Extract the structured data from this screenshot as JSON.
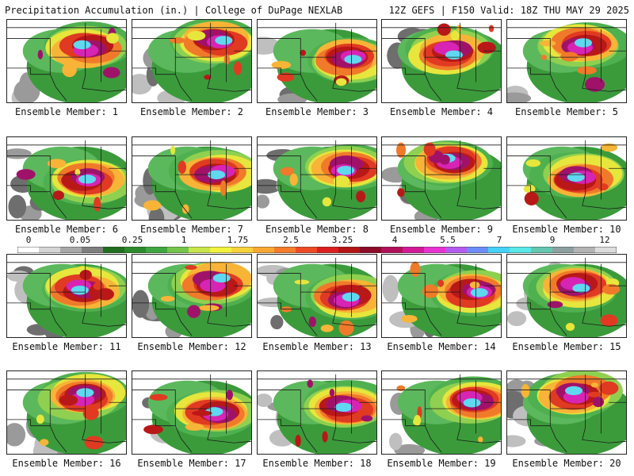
{
  "header": {
    "title": "Precipitation Accumulation (in.) | College of DuPage NEXLAB",
    "run_info": "12Z GEFS | F150 Valid: 18Z THU MAY 29 2025"
  },
  "panels": [
    {
      "label": "Ensemble Member: 1"
    },
    {
      "label": "Ensemble Member: 2"
    },
    {
      "label": "Ensemble Member: 3"
    },
    {
      "label": "Ensemble Member: 4"
    },
    {
      "label": "Ensemble Member: 5"
    },
    {
      "label": "Ensemble Member: 6"
    },
    {
      "label": "Ensemble Member: 7"
    },
    {
      "label": "Ensemble Member: 8"
    },
    {
      "label": "Ensemble Member: 9"
    },
    {
      "label": "Ensemble Member: 10"
    },
    {
      "label": "Ensemble Member: 11"
    },
    {
      "label": "Ensemble Member: 12"
    },
    {
      "label": "Ensemble Member: 13"
    },
    {
      "label": "Ensemble Member: 14"
    },
    {
      "label": "Ensemble Member: 15"
    },
    {
      "label": "Ensemble Member: 16"
    },
    {
      "label": "Ensemble Member: 17"
    },
    {
      "label": "Ensemble Member: 18"
    },
    {
      "label": "Ensemble Member: 19"
    },
    {
      "label": "Ensemble Member: 20"
    }
  ],
  "colorbar": {
    "tick_labels": [
      "0",
      "0.05",
      "0.25",
      "1",
      "1.75",
      "2.5",
      "3.25",
      "4",
      "5.5",
      "7",
      "9",
      "12"
    ],
    "colors": [
      "#ffffff",
      "#d4d4d4",
      "#a8a8a8",
      "#7f7f7f",
      "#1f6e1f",
      "#2c8a2c",
      "#3fa73f",
      "#74c64a",
      "#c8e64a",
      "#f2f23c",
      "#f7d23a",
      "#f8a832",
      "#f47c2a",
      "#ee4a24",
      "#dc1e1e",
      "#b41414",
      "#8c0c28",
      "#b0105a",
      "#d21a96",
      "#e832d2",
      "#b45af0",
      "#6c8cf8",
      "#46d2f8",
      "#58e8e8",
      "#62c8b0",
      "#8ca0a0",
      "#b4b4b4",
      "#dcdcdc"
    ]
  }
}
